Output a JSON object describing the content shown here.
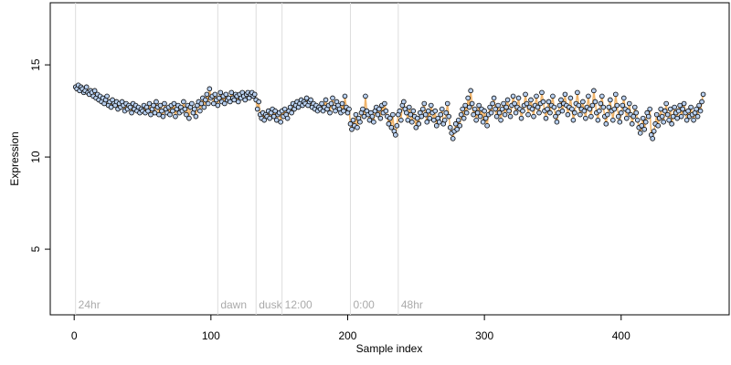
{
  "chart_data": {
    "type": "line",
    "x_label": "Sample index",
    "y_label": "Expression",
    "xlim": [
      -17.5,
      479
    ],
    "ylim": [
      1.44,
      18.37
    ],
    "xticks": [
      0,
      100,
      200,
      300,
      400
    ],
    "yticks": [
      5,
      10,
      15
    ],
    "line_color": "#f0b46a",
    "point_fill": "#b8cfee",
    "annotation_color": "#dddddd",
    "annotations": [
      {
        "x": 1,
        "label": "24hr"
      },
      {
        "x": 105,
        "label": "dawn"
      },
      {
        "x": 133,
        "label": "dusk"
      },
      {
        "x": 152,
        "label": "12:00"
      },
      {
        "x": 202,
        "label": "0:00"
      },
      {
        "x": 237,
        "label": "48hr"
      }
    ],
    "values": [
      13.8,
      13.7,
      13.9,
      13.6,
      13.8,
      13.7,
      13.5,
      13.6,
      13.8,
      13.5,
      13.4,
      13.6,
      13.5,
      13.3,
      13.6,
      13.2,
      13.4,
      13.1,
      13.3,
      13.0,
      13.2,
      12.9,
      13.1,
      13.3,
      12.8,
      13.0,
      12.7,
      13.1,
      12.9,
      12.8,
      13.0,
      12.6,
      12.9,
      12.7,
      13.0,
      12.8,
      12.5,
      12.9,
      12.6,
      12.8,
      12.7,
      12.4,
      12.9,
      12.6,
      12.8,
      12.5,
      12.7,
      12.4,
      12.6,
      12.5,
      12.8,
      12.4,
      12.7,
      12.5,
      12.9,
      12.3,
      12.6,
      12.8,
      12.4,
      13.0,
      12.7,
      12.3,
      12.8,
      12.5,
      12.2,
      12.9,
      12.6,
      12.4,
      12.7,
      12.3,
      12.8,
      12.5,
      12.9,
      12.2,
      12.6,
      12.8,
      12.4,
      12.7,
      12.5,
      13.0,
      12.6,
      12.3,
      12.8,
      12.1,
      12.7,
      12.9,
      12.4,
      12.6,
      12.2,
      12.8,
      13.0,
      12.5,
      12.9,
      13.2,
      12.7,
      13.1,
      13.4,
      12.9,
      13.7,
      13.2,
      13.3,
      12.9,
      13.4,
      13.1,
      12.8,
      13.2,
      13.5,
      13.0,
      13.3,
      12.9,
      13.4,
      13.1,
      13.2,
      13.0,
      13.5,
      13.2,
      13.1,
      13.4,
      13.3,
      13.0,
      13.4,
      13.2,
      13.5,
      13.3,
      13.1,
      13.4,
      13.5,
      13.2,
      13.4,
      13.5,
      13.3,
      13.4,
      13.1,
      12.6,
      13.0,
      12.3,
      12.1,
      12.4,
      12.0,
      12.3,
      12.2,
      12.5,
      12.1,
      12.4,
      12.6,
      12.2,
      12.5,
      12.0,
      12.3,
      12.4,
      11.9,
      12.5,
      12.2,
      12.6,
      12.3,
      12.1,
      12.5,
      12.7,
      12.4,
      12.9,
      12.6,
      12.8,
      13.0,
      12.7,
      12.9,
      13.1,
      12.8,
      13.0,
      12.9,
      13.2,
      12.8,
      13.0,
      13.1,
      12.7,
      12.9,
      12.6,
      12.8,
      12.5,
      12.7,
      12.6,
      12.9,
      12.5,
      12.7,
      13.1,
      12.6,
      12.8,
      12.4,
      12.9,
      13.2,
      12.7,
      12.5,
      13.0,
      12.8,
      12.6,
      12.4,
      12.9,
      12.5,
      13.3,
      12.7,
      12.4,
      12.6,
      11.8,
      11.5,
      12.0,
      11.7,
      12.3,
      11.6,
      12.1,
      11.9,
      12.4,
      12.6,
      12.2,
      13.3,
      12.5,
      12.3,
      12.0,
      12.4,
      12.2,
      11.9,
      12.5,
      12.7,
      12.3,
      12.6,
      12.1,
      12.8,
      12.4,
      12.9,
      12.5,
      12.2,
      11.8,
      12.1,
      11.6,
      12.3,
      11.4,
      11.2,
      11.7,
      12.3,
      12.5,
      12.0,
      12.8,
      13.0,
      12.6,
      12.4,
      12.0,
      12.7,
      12.3,
      11.9,
      12.5,
      12.2,
      11.6,
      12.1,
      11.8,
      12.4,
      12.2,
      12.6,
      12.9,
      12.3,
      11.9,
      12.5,
      12.1,
      12.8,
      12.4,
      12.0,
      12.5,
      11.7,
      12.1,
      11.9,
      12.3,
      12.6,
      11.8,
      12.0,
      12.4,
      12.9,
      12.2,
      11.6,
      11.3,
      11.0,
      11.4,
      11.8,
      11.5,
      12.0,
      11.7,
      12.3,
      12.6,
      12.1,
      12.8,
      12.4,
      13.2,
      12.7,
      13.6,
      12.9,
      12.3,
      12.6,
      12.0,
      12.4,
      12.8,
      12.2,
      12.6,
      11.9,
      12.5,
      12.1,
      11.7,
      12.3,
      12.7,
      12.4,
      12.9,
      13.2,
      12.6,
      12.2,
      12.8,
      12.4,
      12.0,
      12.6,
      12.9,
      12.3,
      12.7,
      13.1,
      12.5,
      12.2,
      12.8,
      13.3,
      12.9,
      12.4,
      12.7,
      13.2,
      12.6,
      12.1,
      12.5,
      12.8,
      13.4,
      12.9,
      12.3,
      12.7,
      13.1,
      12.6,
      12.2,
      12.8,
      13.3,
      12.7,
      12.4,
      12.9,
      13.5,
      13.0,
      12.5,
      12.1,
      12.6,
      13.0,
      12.4,
      12.8,
      13.3,
      12.7,
      12.2,
      11.9,
      12.4,
      12.8,
      13.1,
      12.5,
      12.9,
      13.4,
      12.8,
      12.3,
      12.7,
      13.2,
      12.6,
      12.0,
      12.4,
      12.9,
      13.5,
      12.8,
      12.3,
      12.6,
      13.0,
      12.5,
      12.1,
      12.7,
      13.3,
      12.6,
      12.2,
      12.8,
      13.6,
      13.0,
      12.4,
      12.0,
      12.5,
      12.9,
      13.3,
      12.7,
      12.2,
      11.8,
      12.3,
      12.7,
      13.1,
      12.5,
      12.0,
      12.6,
      13.4,
      12.8,
      12.2,
      11.9,
      12.4,
      12.8,
      13.2,
      12.6,
      12.1,
      12.5,
      12.9,
      12.3,
      11.8,
      12.2,
      12.7,
      12.4,
      12.0,
      11.6,
      11.3,
      11.7,
      12.1,
      11.5,
      11.9,
      12.4,
      12.2,
      12.6,
      11.2,
      11.0,
      11.4,
      11.8,
      12.3,
      11.7,
      12.1,
      12.6,
      12.2,
      11.9,
      12.5,
      12.9,
      12.3,
      12.0,
      12.6,
      11.8,
      12.2,
      12.7,
      12.4,
      12.1,
      12.5,
      12.8,
      12.2,
      12.6,
      12.9,
      12.4,
      12.0,
      12.5,
      12.2,
      12.7,
      12.3,
      12.0,
      12.4,
      12.6,
      12.2,
      12.8,
      12.5,
      13.0,
      13.4
    ]
  }
}
